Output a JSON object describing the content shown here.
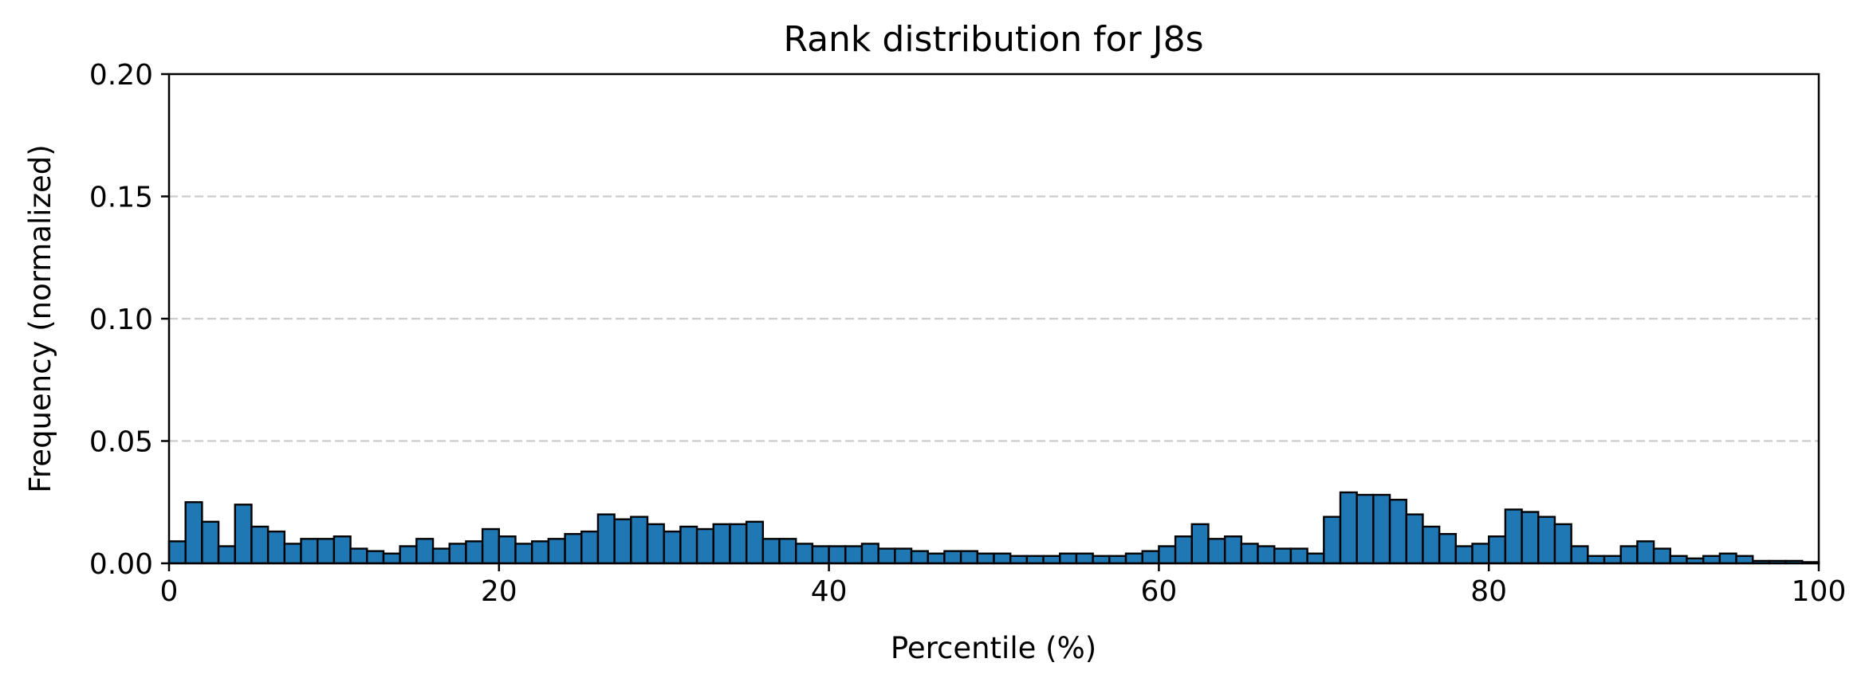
{
  "chart_data": {
    "type": "bar",
    "title": "Rank distribution for J8s",
    "xlabel": "Percentile (%)",
    "ylabel": "Frequency (normalized)",
    "xlim": [
      0,
      100
    ],
    "ylim": [
      0,
      0.2
    ],
    "xticks": [
      0,
      20,
      40,
      60,
      80,
      100
    ],
    "xtick_labels": [
      "0",
      "20",
      "40",
      "60",
      "80",
      "100"
    ],
    "yticks": [
      0,
      0.05,
      0.1,
      0.15,
      0.2
    ],
    "ytick_labels": [
      "0.00",
      "0.05",
      "0.10",
      "0.15",
      "0.20"
    ],
    "grid": "y dashed",
    "bin_width": 1,
    "bar_color": "#1f77b4",
    "edge_color": "#000000",
    "bin_starts": [
      0,
      1,
      2,
      3,
      4,
      5,
      6,
      7,
      8,
      9,
      10,
      11,
      12,
      13,
      14,
      15,
      16,
      17,
      18,
      19,
      20,
      21,
      22,
      23,
      24,
      25,
      26,
      27,
      28,
      29,
      30,
      31,
      32,
      33,
      34,
      35,
      36,
      37,
      38,
      39,
      40,
      41,
      42,
      43,
      44,
      45,
      46,
      47,
      48,
      49,
      50,
      51,
      52,
      53,
      54,
      55,
      56,
      57,
      58,
      59,
      60,
      61,
      62,
      63,
      64,
      65,
      66,
      67,
      68,
      69,
      70,
      71,
      72,
      73,
      74,
      75,
      76,
      77,
      78,
      79,
      80,
      81,
      82,
      83,
      84,
      85,
      86,
      87,
      88,
      89,
      90,
      91,
      92,
      93,
      94,
      95,
      96,
      97,
      98,
      99
    ],
    "values": [
      0.009,
      0.025,
      0.017,
      0.007,
      0.024,
      0.015,
      0.013,
      0.008,
      0.01,
      0.01,
      0.011,
      0.006,
      0.005,
      0.004,
      0.007,
      0.01,
      0.006,
      0.008,
      0.009,
      0.014,
      0.011,
      0.008,
      0.009,
      0.01,
      0.012,
      0.013,
      0.02,
      0.018,
      0.019,
      0.016,
      0.013,
      0.015,
      0.014,
      0.016,
      0.016,
      0.017,
      0.01,
      0.01,
      0.008,
      0.007,
      0.007,
      0.007,
      0.008,
      0.006,
      0.006,
      0.005,
      0.004,
      0.005,
      0.005,
      0.004,
      0.004,
      0.003,
      0.003,
      0.003,
      0.004,
      0.004,
      0.003,
      0.003,
      0.004,
      0.005,
      0.007,
      0.011,
      0.016,
      0.01,
      0.011,
      0.008,
      0.007,
      0.006,
      0.006,
      0.004,
      0.019,
      0.029,
      0.028,
      0.028,
      0.026,
      0.02,
      0.015,
      0.012,
      0.007,
      0.008,
      0.011,
      0.022,
      0.021,
      0.019,
      0.016,
      0.007,
      0.003,
      0.003,
      0.007,
      0.009,
      0.006,
      0.003,
      0.002,
      0.003,
      0.004,
      0.003,
      0.001,
      0.001,
      0.001,
      0.0005
    ]
  }
}
